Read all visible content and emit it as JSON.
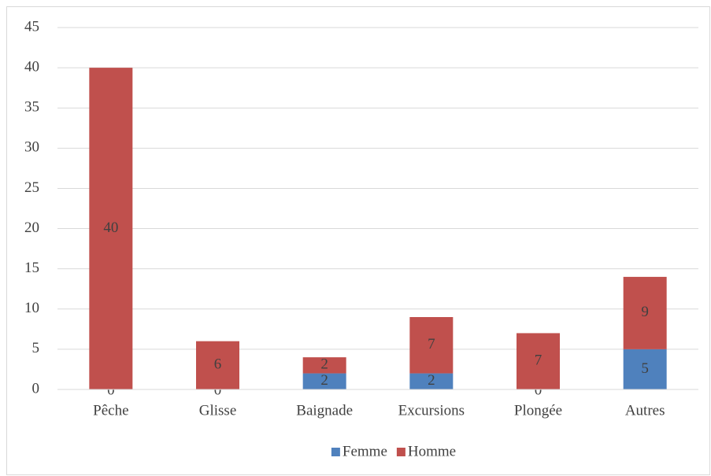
{
  "chart_data": {
    "type": "stacked_bar",
    "categories": [
      "Pêche",
      "Glisse",
      "Baignade",
      "Excursions",
      "Plongée",
      "Autres"
    ],
    "series": [
      {
        "name": "Femme",
        "color": "#4f81bd",
        "values": [
          0,
          0,
          2,
          2,
          0,
          5
        ]
      },
      {
        "name": "Homme",
        "color": "#c0504d",
        "values": [
          40,
          6,
          2,
          7,
          7,
          9
        ]
      }
    ],
    "ylim": [
      0,
      45
    ],
    "yticks": [
      0,
      5,
      10,
      15,
      20,
      25,
      30,
      35,
      40,
      45
    ],
    "grid": true,
    "legend": "bottom"
  }
}
